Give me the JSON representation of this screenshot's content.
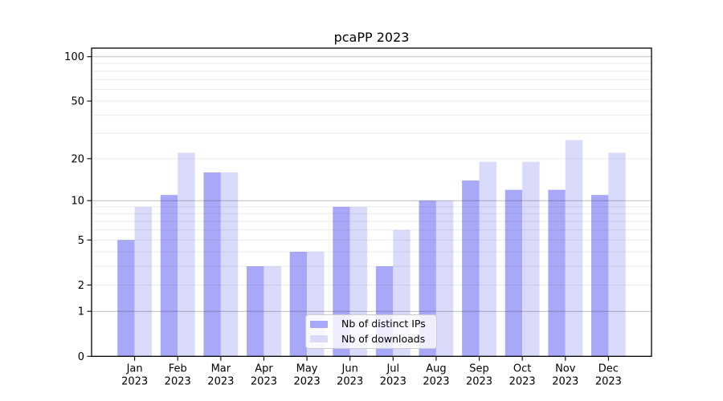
{
  "chart_data": {
    "type": "bar",
    "title": "pcaPP 2023",
    "months": [
      "Jan",
      "Feb",
      "Mar",
      "Apr",
      "May",
      "Jun",
      "Jul",
      "Aug",
      "Sep",
      "Oct",
      "Nov",
      "Dec"
    ],
    "year": "2023",
    "series": [
      {
        "name": "Nb of distinct IPs",
        "color": "#a8a8f8",
        "values": [
          5,
          11,
          16,
          3,
          4,
          9,
          3,
          10,
          14,
          12,
          12,
          11
        ]
      },
      {
        "name": "Nb of downloads",
        "color": "#dadafb",
        "values": [
          9,
          22,
          16,
          3,
          4,
          9,
          6,
          10,
          19,
          19,
          27,
          22
        ]
      }
    ],
    "scale": "log1p",
    "yticks": [
      0,
      1,
      2,
      5,
      10,
      20,
      50,
      100
    ],
    "major_gridlines": [
      1,
      10,
      100
    ],
    "minor_gridlines": [
      2,
      3,
      4,
      5,
      6,
      7,
      8,
      9,
      20,
      30,
      40,
      50,
      60,
      70,
      80,
      90
    ],
    "ylim": [
      0,
      115
    ],
    "grid": "on",
    "legend_position": "lower center",
    "xlabel": "",
    "ylabel": ""
  }
}
